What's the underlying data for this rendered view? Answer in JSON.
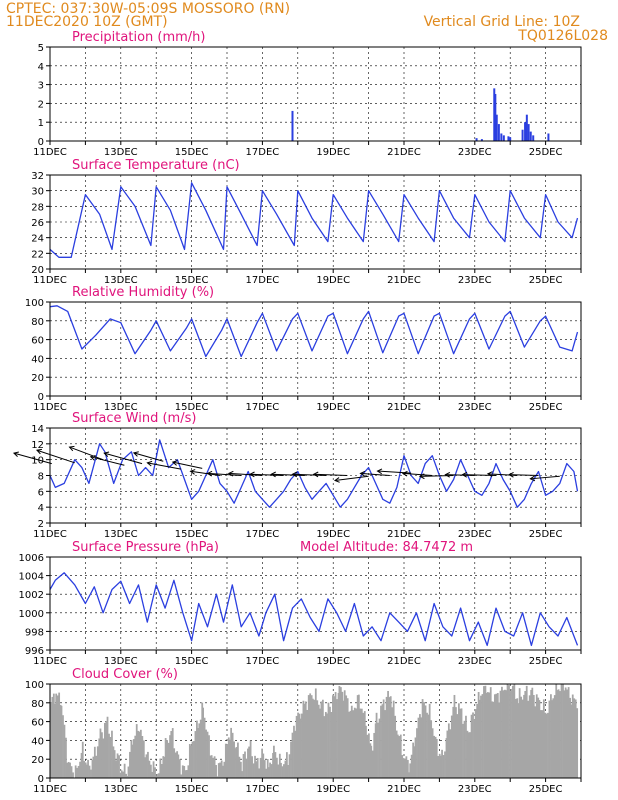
{
  "header": {
    "line1": "CPTEC:   037:30W-05:09S   MOSSORO (RN)",
    "line2": "11DEC2020 10Z (GMT)",
    "grid_note": "Vertical Grid Line: 10Z",
    "code": "TQ0126L028"
  },
  "colors": {
    "header": "#e08a1e",
    "title": "#e0147c",
    "line": "#2b3fe0",
    "cloud": "#a6a6a6",
    "wind_arrow": "#000000"
  },
  "x_labels": [
    "11DEC",
    "13DEC",
    "15DEC",
    "17DEC",
    "19DEC",
    "21DEC",
    "23DEC",
    "25DEC"
  ],
  "chart_data": [
    {
      "type": "bar",
      "title": "Precipitation (mm/h)",
      "ylim": [
        0,
        5
      ],
      "yticks": [
        0,
        1,
        2,
        3,
        4,
        5
      ],
      "x_unit": "day offset from 11DEC",
      "x": [
        6.85,
        12.05,
        12.2,
        12.55,
        12.58,
        12.62,
        12.68,
        12.75,
        12.82,
        12.95,
        13.0,
        13.35,
        13.42,
        13.47,
        13.52,
        13.58,
        13.65,
        14.08
      ],
      "values": [
        1.6,
        0.15,
        0.1,
        2.8,
        2.5,
        1.4,
        0.9,
        0.4,
        0.3,
        0.25,
        0.2,
        0.6,
        1.0,
        1.4,
        0.9,
        0.5,
        0.3,
        0.4
      ]
    },
    {
      "type": "line",
      "title": "Surface Temperature (nC)",
      "ylim": [
        20,
        32
      ],
      "yticks": [
        20,
        22,
        24,
        26,
        28,
        30,
        32
      ],
      "series": [
        {
          "x": [
            0,
            0.25,
            0.6,
            1.0,
            1.4,
            1.75,
            2.0,
            2.4,
            2.85,
            3.0,
            3.4,
            3.8,
            4.0,
            4.4,
            4.9,
            5.0,
            5.4,
            5.85,
            6.0,
            6.4,
            6.9,
            7.0,
            7.4,
            7.85,
            8.0,
            8.4,
            8.85,
            9.0,
            9.4,
            9.85,
            10.0,
            10.4,
            10.85,
            11.0,
            11.4,
            11.85,
            12.0,
            12.4,
            12.85,
            13.0,
            13.4,
            13.85,
            14.0,
            14.35,
            14.75,
            14.9
          ],
          "values": [
            22.5,
            21.5,
            21.5,
            29.5,
            27.0,
            22.5,
            30.5,
            28.0,
            23.0,
            30.5,
            27.5,
            22.5,
            31.0,
            27.5,
            22.5,
            30.5,
            27.0,
            23.0,
            30.0,
            27.0,
            23.0,
            30.0,
            26.5,
            23.5,
            29.5,
            26.5,
            23.5,
            30.0,
            27.0,
            23.5,
            29.5,
            26.5,
            23.5,
            30.0,
            26.5,
            24.0,
            29.5,
            26.0,
            23.5,
            30.0,
            26.5,
            24.0,
            29.5,
            26.0,
            24.0,
            26.5
          ]
        }
      ]
    },
    {
      "type": "line",
      "title": "Relative Humidity (%)",
      "ylim": [
        0,
        100
      ],
      "yticks": [
        0,
        20,
        40,
        60,
        80,
        100
      ],
      "series": [
        {
          "x": [
            0,
            0.2,
            0.5,
            0.9,
            1.3,
            1.7,
            2.0,
            2.4,
            2.85,
            3.0,
            3.4,
            3.85,
            4.0,
            4.4,
            4.85,
            5.0,
            5.4,
            5.85,
            6.0,
            6.4,
            6.85,
            7.0,
            7.4,
            7.85,
            8.0,
            8.4,
            8.85,
            9.0,
            9.4,
            9.85,
            10.0,
            10.4,
            10.85,
            11.0,
            11.4,
            11.85,
            12.0,
            12.4,
            12.85,
            13.0,
            13.4,
            13.85,
            14.0,
            14.4,
            14.75,
            14.9
          ],
          "values": [
            95,
            96,
            90,
            50,
            65,
            82,
            78,
            45,
            70,
            80,
            48,
            72,
            82,
            42,
            70,
            82,
            42,
            78,
            88,
            48,
            82,
            88,
            48,
            85,
            88,
            45,
            82,
            90,
            46,
            85,
            88,
            45,
            85,
            88,
            45,
            82,
            88,
            50,
            85,
            90,
            52,
            80,
            85,
            52,
            48,
            68
          ]
        }
      ]
    },
    {
      "type": "line",
      "title": "Surface Wind (m/s)",
      "ylim": [
        2,
        14
      ],
      "yticks": [
        2,
        4,
        6,
        8,
        10,
        12,
        14
      ],
      "series": [
        {
          "x": [
            0,
            0.15,
            0.4,
            0.7,
            0.9,
            1.1,
            1.4,
            1.55,
            1.8,
            2.05,
            2.3,
            2.5,
            2.7,
            2.9,
            3.1,
            3.35,
            3.6,
            3.8,
            4.0,
            4.2,
            4.4,
            4.6,
            4.8,
            5.0,
            5.2,
            5.4,
            5.6,
            5.8,
            6.0,
            6.2,
            6.4,
            6.6,
            6.8,
            7.0,
            7.2,
            7.4,
            7.6,
            7.8,
            8.0,
            8.2,
            8.4,
            8.6,
            8.8,
            9.0,
            9.2,
            9.4,
            9.6,
            9.8,
            10.0,
            10.2,
            10.4,
            10.6,
            10.8,
            11.0,
            11.2,
            11.4,
            11.6,
            11.8,
            12.0,
            12.2,
            12.4,
            12.6,
            12.8,
            13.0,
            13.2,
            13.4,
            13.6,
            13.8,
            14.0,
            14.2,
            14.4,
            14.6,
            14.8,
            14.9
          ],
          "values": [
            8,
            6.5,
            7,
            10,
            9,
            7,
            12,
            11,
            7,
            10,
            11,
            8,
            9,
            8,
            12.5,
            9,
            10,
            7.5,
            5,
            6,
            8,
            10,
            7,
            6,
            4.5,
            6.5,
            8.5,
            6,
            5,
            4,
            5,
            6,
            7.5,
            8.5,
            6.5,
            5,
            6,
            7,
            5.5,
            4,
            5,
            6.5,
            8,
            9,
            7,
            5,
            4.5,
            6.5,
            10.5,
            8,
            7,
            9.5,
            10.5,
            8,
            6,
            7.5,
            10,
            8,
            6,
            5.5,
            7,
            9.5,
            7.5,
            6,
            4,
            5,
            7,
            8.5,
            5.5,
            6,
            7,
            9.5,
            8.5,
            6
          ]
        }
      ]
    },
    {
      "type": "line",
      "title": "Surface Pressure (hPa)",
      "annotation": "Model Altitude: 84.7472 m",
      "ylim": [
        996,
        1006
      ],
      "yticks": [
        996,
        998,
        1000,
        1002,
        1004,
        1006
      ],
      "series": [
        {
          "x": [
            0,
            0.15,
            0.4,
            0.7,
            1.0,
            1.25,
            1.5,
            1.75,
            2.0,
            2.25,
            2.5,
            2.75,
            3.0,
            3.25,
            3.5,
            3.75,
            4.0,
            4.2,
            4.45,
            4.7,
            4.9,
            5.15,
            5.4,
            5.65,
            5.9,
            6.1,
            6.35,
            6.6,
            6.85,
            7.1,
            7.35,
            7.6,
            7.85,
            8.1,
            8.35,
            8.6,
            8.85,
            9.1,
            9.35,
            9.6,
            9.85,
            10.1,
            10.35,
            10.6,
            10.85,
            11.1,
            11.35,
            11.6,
            11.85,
            12.1,
            12.35,
            12.6,
            12.85,
            13.1,
            13.35,
            13.6,
            13.85,
            14.1,
            14.35,
            14.6,
            14.9
          ],
          "values": [
            1002.5,
            1003.5,
            1004.3,
            1003.0,
            1001.0,
            1002.8,
            1000.0,
            1002.5,
            1003.4,
            1001.0,
            1003.0,
            999.0,
            1003.0,
            1000.5,
            1003.5,
            1000.0,
            997.0,
            1001.0,
            998.5,
            1002.0,
            999.0,
            1003.0,
            998.5,
            1000.0,
            997.5,
            1000.0,
            1002.0,
            997.0,
            1000.5,
            1001.5,
            999.5,
            998.0,
            1001.5,
            1000.0,
            998.0,
            1001.0,
            997.5,
            998.5,
            997.0,
            1000.0,
            999.0,
            998.0,
            1000.0,
            997.0,
            1001.0,
            998.5,
            997.5,
            1000.5,
            997.0,
            999.0,
            996.5,
            1000.5,
            998.0,
            997.5,
            1000.0,
            996.5,
            1000.0,
            998.5,
            997.5,
            999.5,
            996.5
          ]
        }
      ]
    },
    {
      "type": "area",
      "title": "Cloud Cover (%)",
      "ylim": [
        0,
        100
      ],
      "yticks": [
        0,
        20,
        40,
        60,
        80,
        100
      ],
      "x": [
        0,
        0.15,
        0.3,
        0.5,
        0.7,
        0.9,
        1.05,
        1.2,
        1.4,
        1.6,
        1.8,
        2.0,
        2.15,
        2.3,
        2.5,
        2.7,
        2.9,
        3.05,
        3.2,
        3.4,
        3.6,
        3.8,
        4.0,
        4.15,
        4.3,
        4.5,
        4.7,
        4.9,
        5.05,
        5.2,
        5.4,
        5.6,
        5.8,
        6.0,
        6.15,
        6.3,
        6.5,
        6.7,
        6.9,
        7.05,
        7.2,
        7.4,
        7.6,
        7.8,
        8.0,
        8.15,
        8.3,
        8.5,
        8.7,
        8.9,
        9.05,
        9.2,
        9.4,
        9.6,
        9.8,
        10.0,
        10.15,
        10.3,
        10.5,
        10.7,
        10.9,
        11.05,
        11.2,
        11.4,
        11.6,
        11.8,
        12.0,
        12.15,
        12.3,
        12.5,
        12.7,
        12.9,
        13.05,
        13.2,
        13.4,
        13.6,
        13.8,
        14.0,
        14.15,
        14.3,
        14.5,
        14.7,
        14.9
      ],
      "values": [
        80,
        90,
        80,
        15,
        5,
        30,
        10,
        20,
        45,
        60,
        30,
        10,
        5,
        40,
        55,
        25,
        10,
        5,
        30,
        50,
        20,
        5,
        40,
        55,
        75,
        30,
        10,
        20,
        50,
        40,
        15,
        35,
        15,
        25,
        10,
        30,
        15,
        20,
        60,
        70,
        80,
        90,
        80,
        70,
        85,
        95,
        90,
        70,
        85,
        60,
        30,
        60,
        80,
        90,
        50,
        20,
        15,
        45,
        80,
        70,
        35,
        20,
        45,
        80,
        70,
        50,
        75,
        90,
        95,
        85,
        90,
        100,
        95,
        85,
        90,
        90,
        80,
        70,
        85,
        95,
        100,
        85,
        80
      ]
    }
  ],
  "wind_arrows": {
    "x": [
      0.05,
      0.7,
      1.5,
      2.1,
      2.6,
      3.2,
      3.7,
      4.3,
      4.8,
      5.4,
      6.0,
      6.6,
      7.2,
      7.8,
      8.4,
      9.0,
      9.6,
      10.2,
      10.8,
      11.4,
      12.0,
      12.6,
      13.2,
      13.8,
      14.4
    ],
    "y": [
      9.5,
      9.6,
      10.0,
      9.3,
      9.5,
      9.8,
      8.8,
      8.9,
      8.0,
      8.0,
      8.0,
      8.0,
      8.0,
      8.0,
      8.0,
      7.9,
      8.0,
      8.3,
      8.0,
      8.0,
      8.0,
      8.0,
      8.0,
      8.0,
      7.9
    ],
    "u": [
      -9,
      -9,
      -8,
      -8,
      -9,
      -7,
      -8,
      -7,
      -7,
      -8,
      -8,
      -8,
      -8,
      -8,
      -8,
      -8,
      -7,
      -8,
      -7,
      -8,
      -7,
      -8,
      -7,
      -7,
      -7
    ],
    "v": [
      2.5,
      3,
      3,
      2,
      2.5,
      2,
      1.5,
      1.5,
      1,
      0.5,
      0.5,
      0.3,
      0.3,
      0.3,
      0.3,
      -1,
      0.5,
      0.5,
      0.5,
      -0.2,
      0.2,
      0.2,
      0.4,
      0.2,
      -0.6
    ]
  }
}
